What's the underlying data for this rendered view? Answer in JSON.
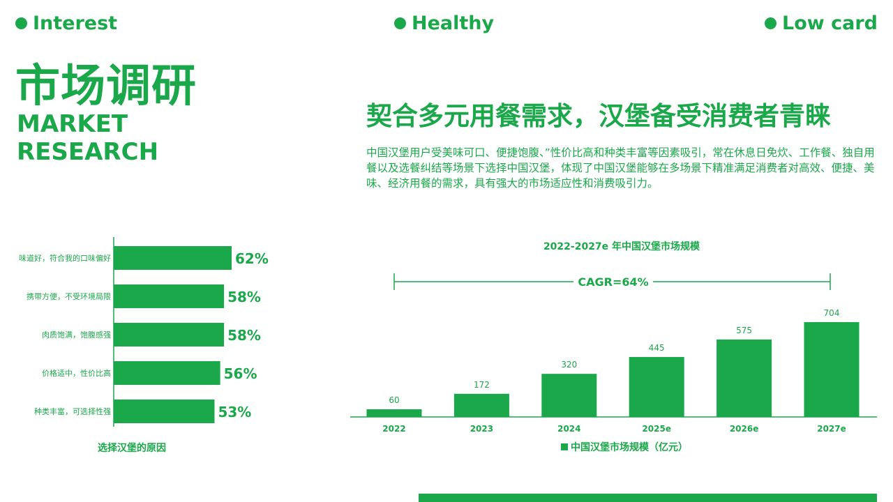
{
  "tags": {
    "interest": "Interest",
    "healthy": "Healthy",
    "lowcard": "Low card"
  },
  "title": {
    "cn": "市场调研",
    "en_line1": "MARKET",
    "en_line2": "RESEARCH"
  },
  "headline": "契合多元用餐需求，汉堡备受消费者青睐",
  "paragraph": "中国汉堡用户受美味可口、便捷饱腹、”性价比高和种类丰富等因素吸引，常在休息日免炊、工作餐、独自用餐以及选餐纠结等场景下选择中国汉堡，体现了中国汉堡能够在多场景下精准满足消费者对高效、便捷、美味、经济用餐的需求，具有强大的市场适应性和消费吸引力。",
  "colors": {
    "accent": "#1aa84a"
  },
  "chart_data": [
    {
      "type": "bar",
      "orientation": "horizontal",
      "categories": [
        "味道好，符合我的口味偏好",
        "携带方便，不受环境局限",
        "肉质饱满，饱腹感强",
        "价格适中，性价比高",
        "种类丰富，可选择性强"
      ],
      "values": [
        62,
        58,
        58,
        56,
        53
      ],
      "labels": [
        "62%",
        "58%",
        "58%",
        "56%",
        "53%"
      ],
      "unit": "%",
      "xlabel": "选择汉堡的原因",
      "xlim": [
        0,
        100
      ]
    },
    {
      "type": "bar",
      "title": "2022-2027e 年中国汉堡市场规模",
      "categories": [
        "2022",
        "2023",
        "2024",
        "2025e",
        "2026e",
        "2027e"
      ],
      "values": [
        60,
        172,
        320,
        445,
        575,
        704
      ],
      "annotation": "CAGR=64%",
      "legend": "中国汉堡市场规模（亿元）",
      "legend_position": "bottom",
      "ylim": [
        0,
        704
      ]
    }
  ]
}
